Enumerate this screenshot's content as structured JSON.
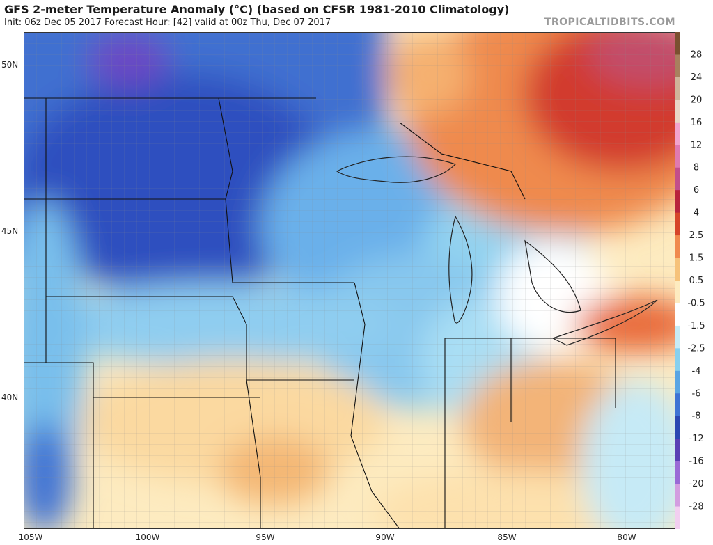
{
  "header": {
    "title": "GFS 2-meter Temperature Anomaly (°C) (based on CFSR 1981-2010 Climatology)",
    "subtitle": "Init: 06z Dec 05 2017   Forecast Hour: [42]   valid at 00z Thu, Dec 07 2017",
    "brand": "TROPICALTIDBITS.COM"
  },
  "map": {
    "lat_labels": [
      "50N",
      "45N",
      "40N"
    ],
    "lon_labels": [
      "105W",
      "100W",
      "95W",
      "90W",
      "85W",
      "80W"
    ],
    "colors": {
      "ocean_lake": "#4a8fd6",
      "cold_deep": "#2a3fa8",
      "cold": "#3a6ad0",
      "cool": "#7ec2ee",
      "cool_light": "#bfe8f6",
      "neutral": "#ffffff",
      "warm_light": "#fde9b8",
      "warm": "#f4b774",
      "hot": "#e55b2e",
      "very_hot": "#c4243a"
    }
  },
  "colorbar": {
    "labels": [
      "28",
      "24",
      "20",
      "16",
      "12",
      "8",
      "6",
      "4",
      "2.5",
      "1.5",
      "0.5",
      "-0.5",
      "-1.5",
      "-2.5",
      "-4",
      "-6",
      "-8",
      "-12",
      "-16",
      "-20",
      "-28"
    ],
    "colors": [
      "#7a5030",
      "#a8805e",
      "#cfb49a",
      "#e9d6c6",
      "#f2a3cc",
      "#e07ab0",
      "#c24e8b",
      "#b8233c",
      "#d6452a",
      "#f08a4e",
      "#f6c27a",
      "#fdebc0",
      "#ffffff",
      "#c7ecf6",
      "#88d0ee",
      "#5aa5e3",
      "#3f73d4",
      "#2b47b2",
      "#5a3fb4",
      "#9a6ad6",
      "#d39de0",
      "#f2cff0"
    ]
  }
}
